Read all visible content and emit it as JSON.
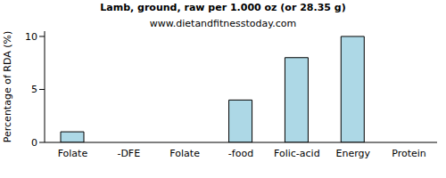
{
  "chart_data": {
    "type": "bar",
    "title": "Lamb, ground, raw per 1.000 oz (or 28.35 g)",
    "subtitle": "www.dietandfitnesstoday.com",
    "y_label": "Percentage of RDA (%)",
    "categories": [
      "Folate",
      "-DFE",
      "Folate",
      "-food",
      "Folic-acid",
      "Energy",
      "Protein"
    ],
    "values": [
      1,
      0,
      0,
      4,
      8,
      10,
      0
    ],
    "color": "#add8e6",
    "ylim": [
      0,
      10.5
    ],
    "yticks": [
      0,
      5,
      10
    ],
    "grid": false
  }
}
